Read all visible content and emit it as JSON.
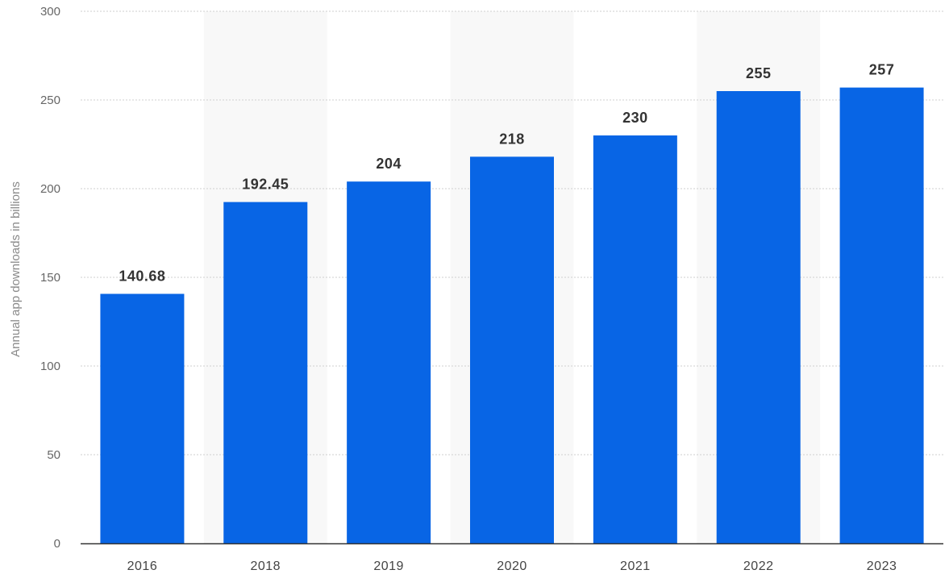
{
  "chart_data": {
    "type": "bar",
    "categories": [
      "2016",
      "2018",
      "2019",
      "2020",
      "2021",
      "2022",
      "2023"
    ],
    "values": [
      140.68,
      192.45,
      204,
      218,
      230,
      255,
      257
    ],
    "value_labels": [
      "140.68",
      "192.45",
      "204",
      "218",
      "230",
      "255",
      "257"
    ],
    "title": "",
    "xlabel": "",
    "ylabel": "Annual app downloads in billions",
    "ylim": [
      0,
      300
    ],
    "yticks": [
      0,
      50,
      100,
      150,
      200,
      250,
      300
    ],
    "grid": "horizontal dotted",
    "legend": "none",
    "bar_color": "#0865e5",
    "alternate_band_color": "#f8f8f8",
    "gridline_color": "#cfcfcf"
  }
}
